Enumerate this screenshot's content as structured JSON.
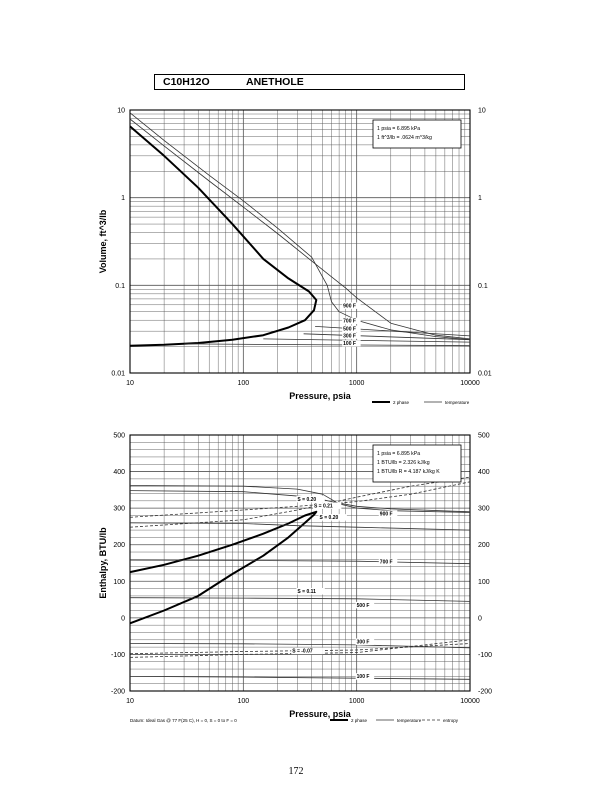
{
  "header": {
    "formula": "C10H12O",
    "name": "ANETHOLE"
  },
  "page_number": "172",
  "chart_data": [
    {
      "type": "line",
      "xscale": "log",
      "yscale": "log",
      "xlabel": "Pressure,  psia",
      "ylabel": "Volume, ft^3/lb",
      "xlim": [
        10,
        10000
      ],
      "ylim": [
        0.01,
        10
      ],
      "xticks": [
        "10",
        "100",
        "1000",
        "10000"
      ],
      "yticks": [
        "10",
        "1",
        "0.1",
        "0.01"
      ],
      "grid": true,
      "note_lines": [
        "1 psia  =  6.895 kPa",
        "1 ft^3/lb  =  .0624 m^3/kg"
      ],
      "legend": [
        "2 phase",
        "temperature"
      ],
      "series": [
        {
          "name": "2 phase",
          "kind": "two_phase",
          "points": [
            [
              10,
              6.5
            ],
            [
              20,
              3.0
            ],
            [
              40,
              1.3
            ],
            [
              80,
              0.5
            ],
            [
              150,
              0.2
            ],
            [
              250,
              0.12
            ],
            [
              380,
              0.085
            ],
            [
              440,
              0.068
            ],
            [
              420,
              0.052
            ],
            [
              350,
              0.04
            ],
            [
              250,
              0.033
            ],
            [
              150,
              0.027
            ],
            [
              80,
              0.024
            ],
            [
              40,
              0.022
            ],
            [
              20,
              0.021
            ],
            [
              10,
              0.0205
            ]
          ]
        },
        {
          "name": "",
          "kind": "temperature",
          "points": [
            [
              10,
              9.3
            ],
            [
              20,
              4.5
            ],
            [
              50,
              1.8
            ],
            [
              100,
              0.92
            ],
            [
              200,
              0.45
            ],
            [
              400,
              0.21
            ],
            [
              550,
              0.1
            ],
            [
              600,
              0.065
            ],
            [
              700,
              0.05
            ],
            [
              1000,
              0.04
            ],
            [
              2000,
              0.031
            ],
            [
              5000,
              0.026
            ],
            [
              10000,
              0.024
            ]
          ]
        },
        {
          "name": "",
          "kind": "temperature",
          "points": [
            [
              10,
              7.9
            ],
            [
              20,
              3.9
            ],
            [
              50,
              1.55
            ],
            [
              100,
              0.78
            ],
            [
              200,
              0.39
            ],
            [
              400,
              0.19
            ],
            [
              600,
              0.125
            ],
            [
              800,
              0.093
            ],
            [
              1000,
              0.072
            ],
            [
              2000,
              0.037
            ],
            [
              5000,
              0.027
            ],
            [
              10000,
              0.0245
            ]
          ]
        },
        {
          "name": "",
          "kind": "temperature",
          "points": [
            [
              430,
              0.034
            ],
            [
              10000,
              0.0265
            ]
          ]
        },
        {
          "name": "",
          "kind": "temperature",
          "points": [
            [
              340,
              0.028
            ],
            [
              10000,
              0.024
            ]
          ]
        },
        {
          "name": "",
          "kind": "temperature",
          "points": [
            [
              150,
              0.0245
            ],
            [
              10000,
              0.0225
            ]
          ]
        },
        {
          "name": "",
          "kind": "temperature",
          "points": [
            [
              30,
              0.0215
            ],
            [
              10000,
              0.0205
            ]
          ]
        }
      ],
      "annotations": [
        {
          "text": "900 F",
          "x": 760,
          "y": 0.056
        },
        {
          "text": "700 F",
          "x": 760,
          "y": 0.0375
        },
        {
          "text": "500 F",
          "x": 760,
          "y": 0.0305
        },
        {
          "text": "300 F",
          "x": 760,
          "y": 0.0255
        },
        {
          "text": "100 F",
          "x": 760,
          "y": 0.0208
        }
      ]
    },
    {
      "type": "line",
      "xscale": "log",
      "yscale": "linear",
      "xlabel": "Pressure,  psia",
      "ylabel": "Enthalpy, BTU/lb",
      "xlim": [
        10,
        10000
      ],
      "ylim": [
        -200,
        500
      ],
      "xticks": [
        "10",
        "100",
        "1000",
        "10000"
      ],
      "yticks": [
        "500",
        "400",
        "300",
        "200",
        "100",
        "0",
        "-100",
        "-200"
      ],
      "grid": true,
      "note_lines": [
        "1 psia  =  6.895 kPa",
        "1 BTU/lb  =  2.326 kJ/kg",
        "1 BTU/lb R  =  4.187 kJ/kg K"
      ],
      "legend": [
        "2 phase",
        "temperature",
        "entropy"
      ],
      "footnote": "Datum: Ideal Gas @ 77 F(25 C),  H = 0,  S = 0 to F = 0",
      "series": [
        {
          "name": "2 phase",
          "kind": "two_phase",
          "points": [
            [
              10,
              125
            ],
            [
              20,
              145
            ],
            [
              40,
              170
            ],
            [
              80,
              200
            ],
            [
              150,
              230
            ],
            [
              250,
              258
            ],
            [
              350,
              280
            ],
            [
              440,
              290
            ],
            [
              420,
              282
            ],
            [
              350,
              260
            ],
            [
              250,
              220
            ],
            [
              150,
              170
            ],
            [
              80,
              120
            ],
            [
              40,
              60
            ],
            [
              20,
              20
            ],
            [
              10,
              -15
            ]
          ]
        },
        {
          "name": "",
          "kind": "temperature",
          "points": [
            [
              10,
              362
            ],
            [
              100,
              360
            ],
            [
              300,
              352
            ],
            [
              500,
              338
            ],
            [
              700,
              312
            ],
            [
              1000,
              300
            ],
            [
              2000,
              293
            ],
            [
              10000,
              288
            ]
          ]
        },
        {
          "name": "",
          "kind": "temperature",
          "points": [
            [
              10,
              348
            ],
            [
              100,
              345
            ],
            [
              400,
              330
            ],
            [
              600,
              318
            ],
            [
              1000,
              305
            ],
            [
              2000,
              298
            ],
            [
              10000,
              290
            ]
          ]
        },
        {
          "name": "",
          "kind": "temperature",
          "points": [
            [
              10,
              260
            ],
            [
              100,
              258
            ],
            [
              300,
              252
            ],
            [
              1000,
              248
            ],
            [
              10000,
              240
            ]
          ]
        },
        {
          "name": "",
          "kind": "temperature",
          "points": [
            [
              10,
              158
            ],
            [
              100,
              157
            ],
            [
              1000,
              155
            ],
            [
              10000,
              148
            ]
          ]
        },
        {
          "name": "",
          "kind": "temperature",
          "points": [
            [
              10,
              55
            ],
            [
              100,
              54
            ],
            [
              1000,
              52
            ],
            [
              10000,
              45
            ]
          ]
        },
        {
          "name": "",
          "kind": "temperature",
          "points": [
            [
              10,
              -70
            ],
            [
              100,
              -71
            ],
            [
              1000,
              -74
            ],
            [
              10000,
              -82
            ]
          ]
        },
        {
          "name": "",
          "kind": "temperature",
          "points": [
            [
              10,
              -160
            ],
            [
              100,
              -162
            ],
            [
              1000,
              -165
            ],
            [
              10000,
              -168
            ]
          ]
        },
        {
          "name": "",
          "kind": "entropy",
          "points": [
            [
              10,
              248
            ],
            [
              100,
              268
            ],
            [
              300,
              295
            ],
            [
              1000,
              330
            ],
            [
              3000,
              360
            ],
            [
              10000,
              385
            ]
          ]
        },
        {
          "name": "",
          "kind": "entropy",
          "points": [
            [
              10,
              275
            ],
            [
              100,
              295
            ],
            [
              300,
              305
            ],
            [
              1000,
              318
            ],
            [
              3000,
              338
            ],
            [
              10000,
              372
            ]
          ]
        },
        {
          "name": "",
          "kind": "entropy",
          "points": [
            [
              10,
              -108
            ],
            [
              100,
              -100
            ],
            [
              1000,
              -95
            ],
            [
              10000,
              -60
            ]
          ]
        },
        {
          "name": "",
          "kind": "entropy",
          "points": [
            [
              10,
              -98
            ],
            [
              100,
              -92
            ],
            [
              1000,
              -88
            ],
            [
              10000,
              -70
            ]
          ]
        }
      ],
      "annotations": [
        {
          "text": "S = 0.20",
          "x": 300,
          "y": 320
        },
        {
          "text": "S = 0.21",
          "x": 420,
          "y": 302
        },
        {
          "text": "S = 0.20",
          "x": 470,
          "y": 270
        },
        {
          "text": "900 F",
          "x": 1600,
          "y": 280
        },
        {
          "text": "700 F",
          "x": 1600,
          "y": 148
        },
        {
          "text": "S = 0.11",
          "x": 300,
          "y": 68
        },
        {
          "text": "500 F",
          "x": 1000,
          "y": 30
        },
        {
          "text": "300 F",
          "x": 1000,
          "y": -70
        },
        {
          "text": "S = -0.07",
          "x": 270,
          "y": -95
        },
        {
          "text": "100 F",
          "x": 1000,
          "y": -165
        }
      ]
    }
  ]
}
